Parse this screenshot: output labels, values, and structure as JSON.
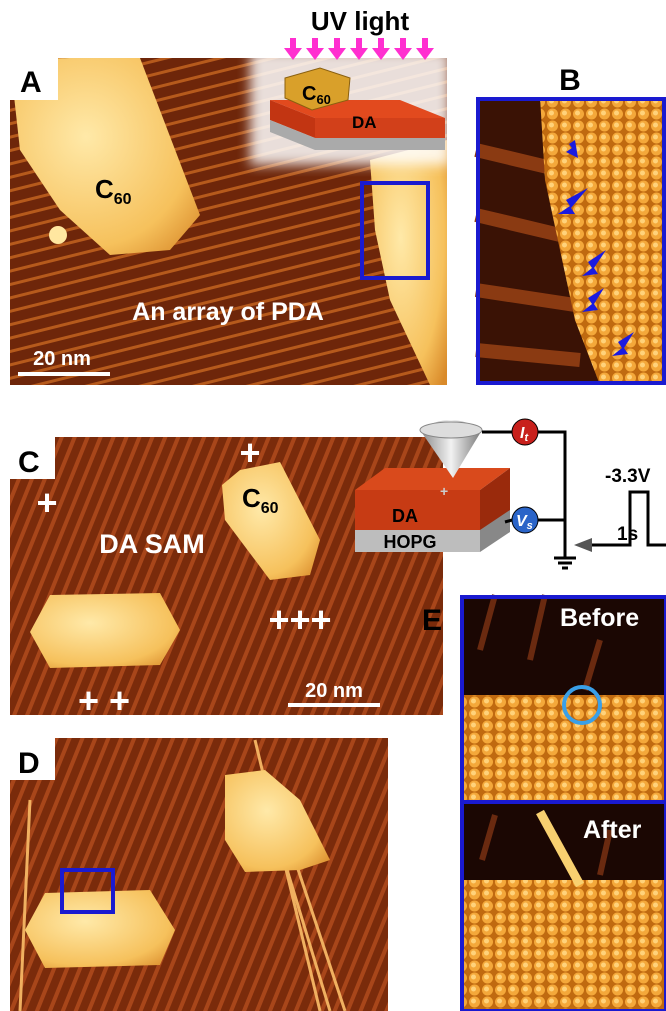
{
  "figure": {
    "a": {
      "label": "A",
      "uv_light": "UV light",
      "inset_c": "C",
      "inset_sub": "60",
      "inset_da": "DA",
      "island_c": "C",
      "island_sub": "60",
      "array": "An array of PDA",
      "scale": "20 nm"
    },
    "b": {
      "label": "B"
    },
    "c": {
      "label": "C",
      "da_sam": "DA SAM",
      "island_c": "C",
      "island_sub": "60",
      "scale": "20 nm",
      "plus_top": "+",
      "plus_left": "+",
      "plus_right": "+++",
      "plus_bottom": "+ +"
    },
    "schematic": {
      "it_main": "I",
      "it_sub": "t",
      "vs_main": "V",
      "vs_sub": "s",
      "da": "DA",
      "hopg": "HOPG",
      "pulse_voltage": "-3.3V",
      "pulse_width": "1s"
    },
    "d": {
      "label": "D"
    },
    "e": {
      "label": "E",
      "before": "Before",
      "after": "After"
    }
  }
}
